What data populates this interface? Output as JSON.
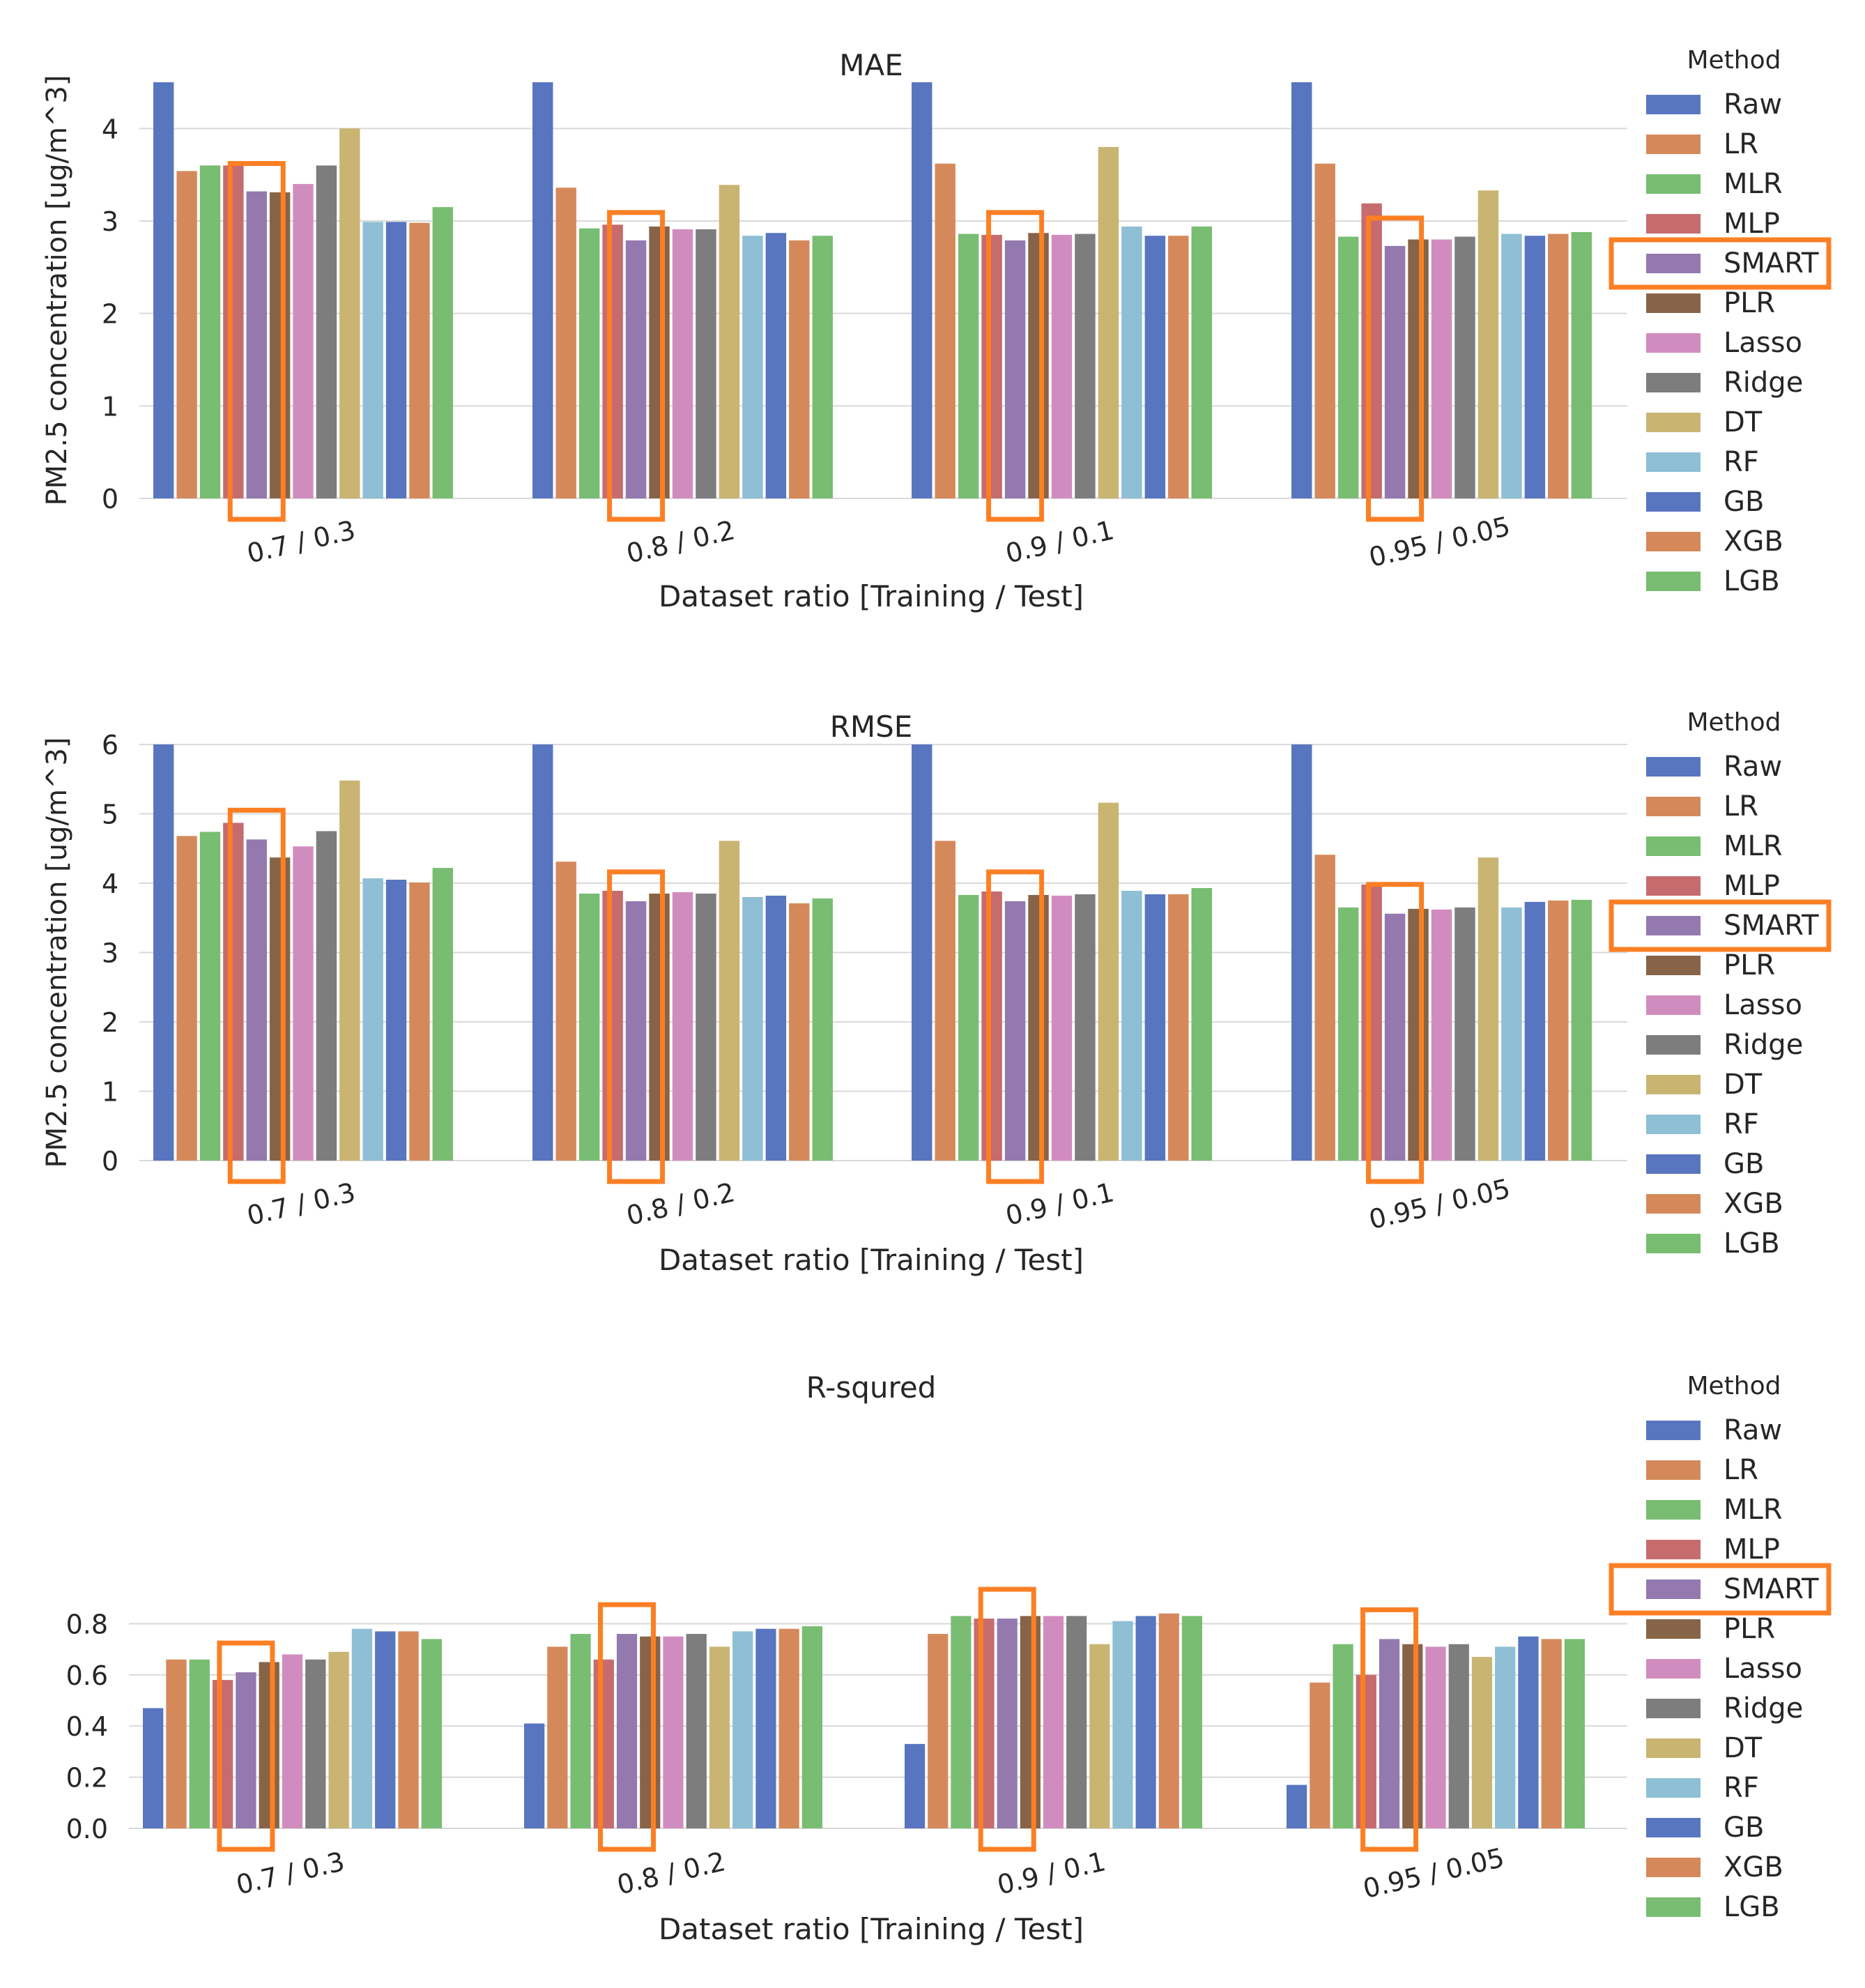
{
  "legend_title": "Method",
  "methods": [
    "Raw",
    "LR",
    "MLR",
    "MLP",
    "SMART",
    "PLR",
    "Lasso",
    "Ridge",
    "DT",
    "RF",
    "GB",
    "XGB",
    "LGB"
  ],
  "colors": [
    "#5875c0",
    "#d5895a",
    "#78bd72",
    "#c66c6e",
    "#9379ae",
    "#876448",
    "#d18cbf",
    "#7d7d7d",
    "#c9b472",
    "#8ebfd4",
    "#5875c0",
    "#d5895a",
    "#78bd72"
  ],
  "highlight_color": "#fc7f24",
  "highlight_method": "SMART",
  "chart_data": [
    {
      "type": "bar",
      "title": "MAE",
      "xlabel": "Dataset ratio [Training / Test]",
      "ylabel": "PM2.5 concentration [ug/m^3]",
      "ylim": [
        0,
        4.5
      ],
      "yticks": [
        0,
        1,
        2,
        3,
        4
      ],
      "ytick_labels": [
        "0",
        "1",
        "2",
        "3",
        "4"
      ],
      "categories": [
        "0.7 / 0.3",
        "0.8 / 0.2",
        "0.9 / 0.1",
        "0.95 / 0.05"
      ],
      "series": [
        {
          "name": "Raw",
          "values": [
            4.5,
            4.5,
            4.5,
            4.5
          ]
        },
        {
          "name": "LR",
          "values": [
            3.54,
            3.36,
            3.62,
            3.62
          ]
        },
        {
          "name": "MLR",
          "values": [
            3.6,
            2.92,
            2.86,
            2.83
          ]
        },
        {
          "name": "MLP",
          "values": [
            3.6,
            2.96,
            2.85,
            3.19
          ]
        },
        {
          "name": "SMART",
          "values": [
            3.32,
            2.79,
            2.79,
            2.73
          ]
        },
        {
          "name": "PLR",
          "values": [
            3.31,
            2.94,
            2.87,
            2.8
          ]
        },
        {
          "name": "Lasso",
          "values": [
            3.4,
            2.91,
            2.85,
            2.8
          ]
        },
        {
          "name": "Ridge",
          "values": [
            3.6,
            2.91,
            2.86,
            2.83
          ]
        },
        {
          "name": "DT",
          "values": [
            4.0,
            3.39,
            3.8,
            3.33
          ]
        },
        {
          "name": "RF",
          "values": [
            2.99,
            2.84,
            2.94,
            2.86
          ]
        },
        {
          "name": "GB",
          "values": [
            2.99,
            2.87,
            2.84,
            2.84
          ]
        },
        {
          "name": "XGB",
          "values": [
            2.98,
            2.79,
            2.84,
            2.86
          ]
        },
        {
          "name": "LGB",
          "values": [
            3.15,
            2.84,
            2.94,
            2.88
          ]
        }
      ]
    },
    {
      "type": "bar",
      "title": "RMSE",
      "xlabel": "Dataset ratio [Training / Test]",
      "ylabel": "PM2.5 concentration [ug/m^3]",
      "ylim": [
        0,
        6
      ],
      "yticks": [
        0,
        1,
        2,
        3,
        4,
        5,
        6
      ],
      "ytick_labels": [
        "0",
        "1",
        "2",
        "3",
        "4",
        "5",
        "6"
      ],
      "categories": [
        "0.7 / 0.3",
        "0.8 / 0.2",
        "0.9 / 0.1",
        "0.95 / 0.05"
      ],
      "series": [
        {
          "name": "Raw",
          "values": [
            6.0,
            6.0,
            6.0,
            6.0
          ]
        },
        {
          "name": "LR",
          "values": [
            4.68,
            4.31,
            4.61,
            4.41
          ]
        },
        {
          "name": "MLR",
          "values": [
            4.74,
            3.85,
            3.83,
            3.65
          ]
        },
        {
          "name": "MLP",
          "values": [
            4.87,
            3.89,
            3.88,
            3.98
          ]
        },
        {
          "name": "SMART",
          "values": [
            4.63,
            3.74,
            3.74,
            3.56
          ]
        },
        {
          "name": "PLR",
          "values": [
            4.37,
            3.85,
            3.83,
            3.63
          ]
        },
        {
          "name": "Lasso",
          "values": [
            4.53,
            3.87,
            3.82,
            3.62
          ]
        },
        {
          "name": "Ridge",
          "values": [
            4.75,
            3.85,
            3.84,
            3.65
          ]
        },
        {
          "name": "DT",
          "values": [
            5.48,
            4.61,
            5.16,
            4.37
          ]
        },
        {
          "name": "RF",
          "values": [
            4.07,
            3.8,
            3.89,
            3.65
          ]
        },
        {
          "name": "GB",
          "values": [
            4.05,
            3.82,
            3.84,
            3.73
          ]
        },
        {
          "name": "XGB",
          "values": [
            4.01,
            3.71,
            3.84,
            3.75
          ]
        },
        {
          "name": "LGB",
          "values": [
            4.22,
            3.78,
            3.93,
            3.76
          ]
        }
      ]
    },
    {
      "type": "bar",
      "title": "R-squred",
      "xlabel": "Dataset ratio [Training / Test]",
      "ylabel": "",
      "ylim": [
        0,
        0.88
      ],
      "yticks": [
        0,
        0.2,
        0.4,
        0.6,
        0.8
      ],
      "ytick_labels": [
        "0.0",
        "0.2",
        "0.4",
        "0.6",
        "0.8"
      ],
      "categories": [
        "0.7 / 0.3",
        "0.8 / 0.2",
        "0.9 / 0.1",
        "0.95 / 0.05"
      ],
      "series": [
        {
          "name": "Raw",
          "values": [
            0.47,
            0.41,
            0.33,
            0.17
          ]
        },
        {
          "name": "LR",
          "values": [
            0.66,
            0.71,
            0.76,
            0.57
          ]
        },
        {
          "name": "MLR",
          "values": [
            0.66,
            0.76,
            0.83,
            0.72
          ]
        },
        {
          "name": "MLP",
          "values": [
            0.58,
            0.66,
            0.82,
            0.6
          ]
        },
        {
          "name": "SMART",
          "values": [
            0.61,
            0.76,
            0.82,
            0.74
          ]
        },
        {
          "name": "PLR",
          "values": [
            0.65,
            0.75,
            0.83,
            0.72
          ]
        },
        {
          "name": "Lasso",
          "values": [
            0.68,
            0.75,
            0.83,
            0.71
          ]
        },
        {
          "name": "Ridge",
          "values": [
            0.66,
            0.76,
            0.83,
            0.72
          ]
        },
        {
          "name": "DT",
          "values": [
            0.69,
            0.71,
            0.72,
            0.67
          ]
        },
        {
          "name": "RF",
          "values": [
            0.78,
            0.77,
            0.81,
            0.71
          ]
        },
        {
          "name": "GB",
          "values": [
            0.77,
            0.78,
            0.83,
            0.75
          ]
        },
        {
          "name": "XGB",
          "values": [
            0.77,
            0.78,
            0.84,
            0.74
          ]
        },
        {
          "name": "LGB",
          "values": [
            0.74,
            0.79,
            0.83,
            0.74
          ]
        }
      ]
    }
  ]
}
